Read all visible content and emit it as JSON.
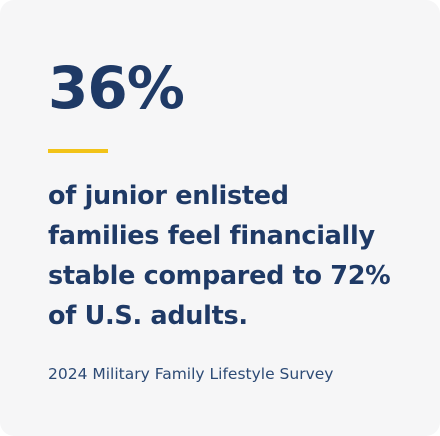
{
  "stat": {
    "value": "36%"
  },
  "statement": {
    "lines": [
      "of junior enlisted",
      "families feel financially",
      "stable compared to 72%",
      "of U.S. adults."
    ]
  },
  "source": {
    "text": "2024 Military Family Lifestyle Survey"
  },
  "colors": {
    "card_background": "#f6f6f7",
    "text_primary": "#1f3a66",
    "accent": "#f2c318"
  }
}
